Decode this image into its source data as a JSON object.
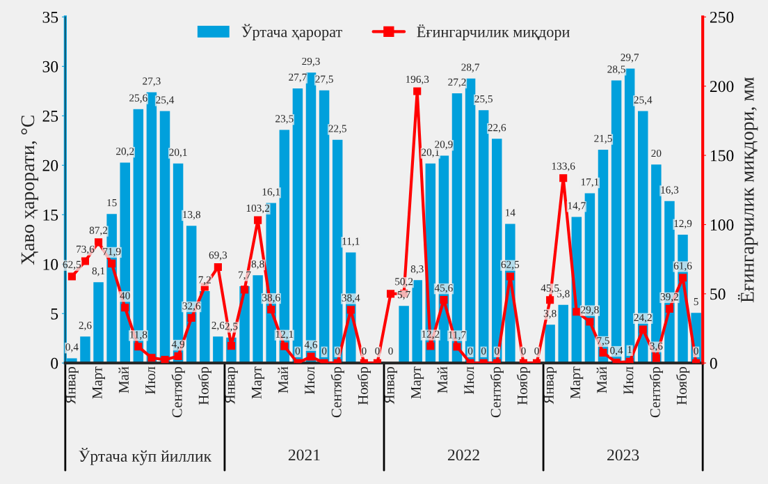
{
  "chart_data": {
    "type": "bar",
    "categories": [
      "Январ",
      null,
      "Март",
      null,
      "Май",
      null,
      "Июл",
      null,
      "Сентябр",
      null,
      "Ноябр",
      null,
      "Январ",
      null,
      "Март",
      null,
      "Май",
      null,
      "Июл",
      null,
      "Сентябр",
      null,
      "Ноябр",
      null,
      "Январ",
      null,
      "Март",
      null,
      "Май",
      null,
      "Июл",
      null,
      "Сентябр",
      null,
      "Ноябр",
      null,
      "Январ",
      null,
      "Март",
      null,
      "Май",
      null,
      "Июл",
      null,
      "Сентябр",
      null,
      "Ноябр",
      null
    ],
    "series": [
      {
        "name": "Ўртача ҳарорат",
        "color": "#00a0dc",
        "values": [
          0.4,
          2.6,
          8.1,
          15,
          20.2,
          25.6,
          27.3,
          25.4,
          20.1,
          13.8,
          7.2,
          2.6,
          2.5,
          7.7,
          8.8,
          16.1,
          23.5,
          27.7,
          29.3,
          27.5,
          22.5,
          11.1,
          null,
          null,
          0,
          5.7,
          8.3,
          20.1,
          20.9,
          27.2,
          28.7,
          25.5,
          22.6,
          14,
          null,
          null,
          3.8,
          5.8,
          14.7,
          17.1,
          21.5,
          28.5,
          29.7,
          25.4,
          20,
          16.3,
          12.9,
          5
        ],
        "value_labels": [
          "0,4",
          "2,6",
          "8,1",
          "15",
          "20,2",
          "25,6",
          "27,3",
          "25,4",
          "20,1",
          "13,8",
          "7,2",
          "2,6",
          "2,5",
          "7,7",
          "8,8",
          "16,1",
          "23,5",
          "27,7",
          "29,3",
          "27,5",
          "22,5",
          "11,1",
          null,
          null,
          "0",
          "5,7",
          "8,3",
          "20,1",
          "20,9",
          "27,2",
          "28,7",
          "25,5",
          "22,6",
          "14",
          null,
          null,
          "3,8",
          "5,8",
          "14,7",
          "17,1",
          "21,5",
          "28,5",
          "29,7",
          "25,4",
          "20",
          "16,3",
          "12,9",
          "5"
        ]
      },
      {
        "name": "Ёғингарчилик миқдори",
        "type": "line",
        "axis": "y2",
        "color": "#ff0000",
        "values": [
          62.5,
          73.6,
          87.2,
          71.9,
          40,
          11.8,
          3.8,
          2.4,
          4.9,
          32.6,
          55,
          69.3,
          12.4,
          53,
          103.2,
          38.6,
          12.1,
          0,
          4.6,
          0,
          0,
          38.4,
          0,
          0,
          50,
          50.2,
          196.3,
          12.2,
          45.6,
          11.7,
          0,
          0,
          0,
          62.5,
          0,
          0,
          45.5,
          133.6,
          37,
          29.8,
          7.5,
          0.4,
          1,
          24.2,
          3.6,
          39.2,
          61.6,
          0
        ],
        "value_labels": [
          "62,5",
          "73,6",
          "87,2",
          "71,9",
          "40",
          "11,8",
          null,
          null,
          "4,9",
          "32,6",
          null,
          "69,3",
          null,
          null,
          "103,2",
          "38,6",
          "12,1",
          "0",
          "4,6",
          "0",
          "0",
          "38,4",
          "0",
          "0",
          null,
          "50,2",
          "196,3",
          "12,2",
          "45,6",
          "11,7",
          "0",
          "0",
          "0",
          "62,5",
          "0",
          "0",
          "45,5",
          "133,6",
          null,
          "29,8",
          "7,5",
          "0,4",
          "1",
          "24,2",
          "3,6",
          "39,2",
          "61,6",
          "0"
        ]
      }
    ],
    "ylabel": "Ҳаво ҳарорати, °C",
    "y2label": "Ёғингарчилик миқдори, мм",
    "ylim": [
      0,
      35
    ],
    "yticks": [
      0,
      5,
      10,
      15,
      20,
      25,
      30,
      35
    ],
    "y2lim": [
      0,
      250
    ],
    "y2ticks": [
      0,
      50,
      100,
      150,
      200,
      250
    ],
    "marker": "square",
    "legend": "top",
    "grid": false,
    "annotations": [
      "Ўртача кўп йиллик",
      "2021",
      "2022",
      "2023"
    ]
  }
}
